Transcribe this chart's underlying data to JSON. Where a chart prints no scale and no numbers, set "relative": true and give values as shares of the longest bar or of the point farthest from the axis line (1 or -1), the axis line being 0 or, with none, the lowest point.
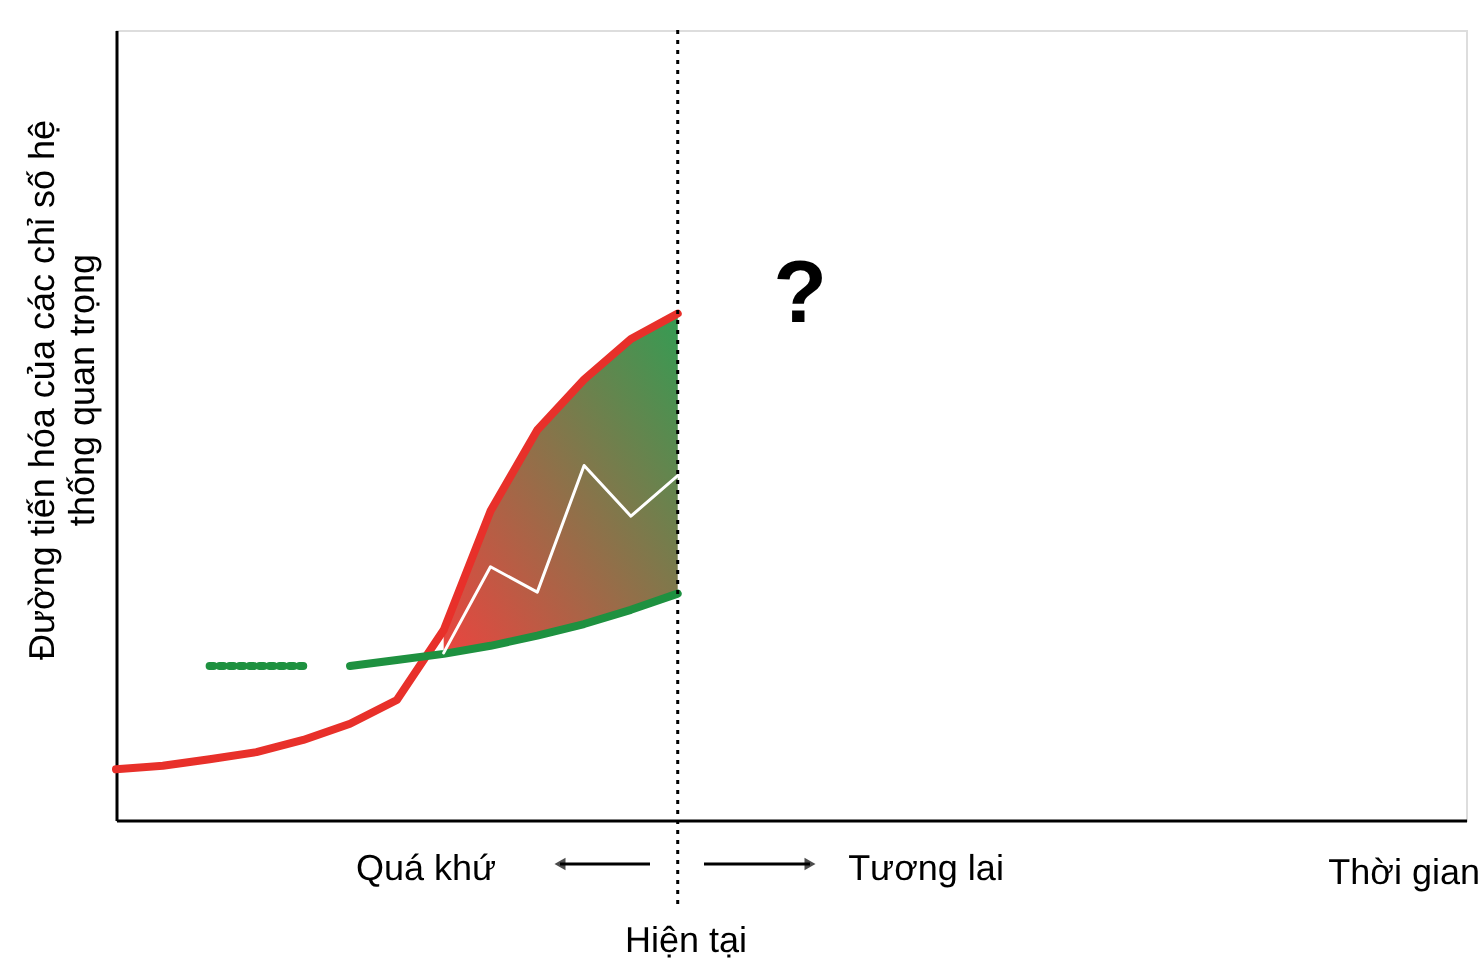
{
  "chart_data": {
    "type": "line",
    "relative": true,
    "xlabel": "Thời gian",
    "ylabel": "Đường tiến hóa của các chỉ số hệ thống quan trọng",
    "tick_labels": false,
    "grid": false,
    "marker": "none",
    "line_style": "solid",
    "categories": [
      null,
      null,
      null,
      null,
      null,
      null,
      null,
      null,
      null,
      null,
      null,
      null,
      null,
      null,
      null,
      null,
      null,
      null,
      null,
      null,
      null,
      null,
      null,
      null,
      null,
      null,
      null,
      null,
      null
    ],
    "series": [
      {
        "color": "#e8302a",
        "values": [
          0.1,
          0.107,
          0.12,
          0.134,
          0.158,
          0.19,
          0.237,
          0.375,
          0.61,
          0.77,
          0.87,
          0.95,
          1.0,
          null,
          null,
          null,
          null,
          null,
          null,
          null,
          null,
          null,
          null,
          null,
          null,
          null,
          null,
          null,
          null
        ]
      },
      {
        "color": "#1e9140",
        "values": [
          null,
          null,
          null,
          null,
          null,
          0.304,
          0.316,
          0.328,
          0.344,
          0.364,
          0.387,
          0.415,
          0.447,
          null,
          null,
          null,
          null,
          null,
          null,
          null,
          null,
          null,
          null,
          null,
          null,
          null,
          null,
          null,
          null
        ],
        "lower": [
          null,
          null,
          null,
          null,
          null,
          null,
          null,
          0.328,
          0.344,
          0.364,
          0.387,
          0.415,
          0.447,
          null,
          null,
          null,
          null,
          null,
          null,
          null,
          null,
          null,
          null,
          null,
          null,
          null,
          null,
          null,
          null
        ],
        "upper": [
          null,
          null,
          null,
          null,
          null,
          null,
          null,
          0.375,
          0.61,
          0.77,
          0.87,
          0.95,
          1.0,
          null,
          null,
          null,
          null,
          null,
          null,
          null,
          null,
          null,
          null,
          null,
          null,
          null,
          null,
          null,
          null
        ]
      },
      {
        "color": "#1e9140",
        "line_style": "dotted",
        "values": [
          null,
          null,
          0.304,
          0.304,
          0.304,
          null,
          null,
          null,
          null,
          null,
          null,
          null,
          null,
          null,
          null,
          null,
          null,
          null,
          null,
          null,
          null,
          null,
          null,
          null,
          null,
          null,
          null,
          null,
          null
        ]
      },
      {
        "color": "#ffffff",
        "values": [
          null,
          null,
          null,
          null,
          null,
          null,
          null,
          0.33,
          0.5,
          0.45,
          0.7,
          0.6,
          0.68,
          null,
          null,
          null,
          null,
          null,
          null,
          null,
          null,
          null,
          null,
          null,
          null,
          null,
          null,
          null,
          null
        ]
      }
    ],
    "annotations": [
      "?",
      "Quá khứ",
      "Tương lai",
      "Hiện tại"
    ]
  }
}
